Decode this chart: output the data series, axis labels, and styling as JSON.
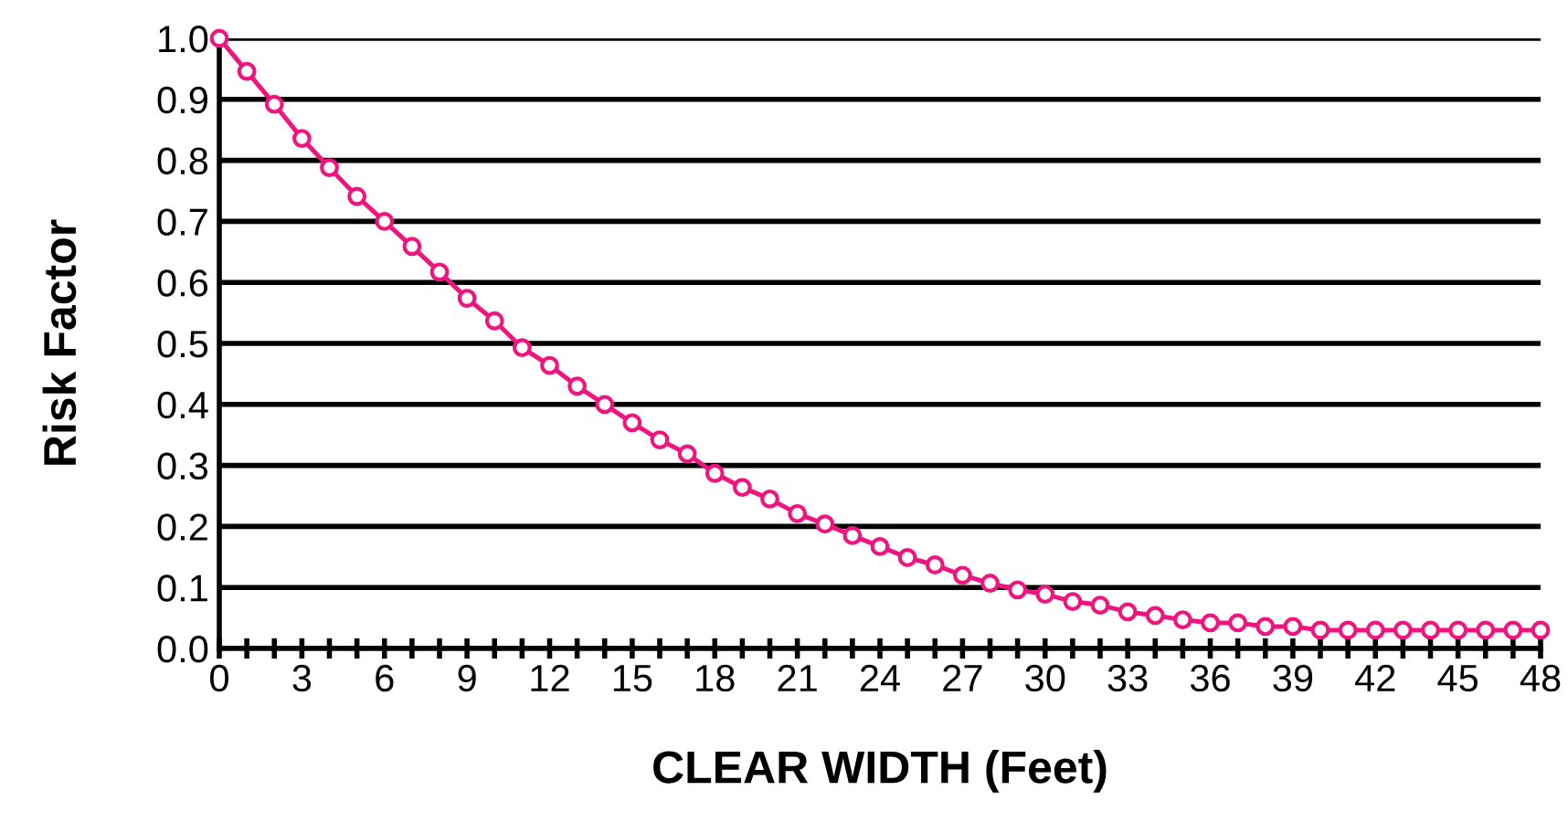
{
  "chart_data": {
    "type": "line",
    "xlabel": "CLEAR WIDTH (Feet)",
    "ylabel": "Risk Factor",
    "x": [
      0,
      1,
      2,
      3,
      4,
      5,
      6,
      7,
      8,
      9,
      10,
      11,
      12,
      13,
      14,
      15,
      16,
      17,
      18,
      19,
      20,
      21,
      22,
      23,
      24,
      25,
      26,
      27,
      28,
      29,
      30,
      31,
      32,
      33,
      34,
      35,
      36,
      37,
      38,
      39,
      40,
      41,
      42,
      43,
      44,
      45,
      46,
      47,
      48
    ],
    "series": [
      {
        "color": "#f0147f",
        "values": [
          1.0,
          0.946,
          0.892,
          0.836,
          0.788,
          0.741,
          0.7,
          0.659,
          0.617,
          0.574,
          0.537,
          0.493,
          0.464,
          0.43,
          0.4,
          0.37,
          0.342,
          0.319,
          0.287,
          0.264,
          0.245,
          0.221,
          0.204,
          0.185,
          0.167,
          0.149,
          0.137,
          0.12,
          0.107,
          0.096,
          0.089,
          0.077,
          0.071,
          0.06,
          0.054,
          0.047,
          0.042,
          0.042,
          0.036,
          0.036,
          0.03,
          0.03,
          0.03,
          0.03,
          0.03,
          0.03,
          0.03,
          0.03,
          0.03
        ]
      }
    ],
    "xlim": [
      0,
      48
    ],
    "ylim": [
      0,
      1.0
    ],
    "xticks": [
      0,
      {
        "value": 1,
        "label": null
      },
      {
        "value": 2,
        "label": null
      },
      3,
      {
        "value": 4,
        "label": null
      },
      {
        "value": 5,
        "label": null
      },
      6,
      {
        "value": 7,
        "label": null
      },
      {
        "value": 8,
        "label": null
      },
      9,
      {
        "value": 10,
        "label": null
      },
      {
        "value": 11,
        "label": null
      },
      12,
      {
        "value": 13,
        "label": null
      },
      {
        "value": 14,
        "label": null
      },
      15,
      {
        "value": 16,
        "label": null
      },
      {
        "value": 17,
        "label": null
      },
      18,
      {
        "value": 19,
        "label": null
      },
      {
        "value": 20,
        "label": null
      },
      21,
      {
        "value": 22,
        "label": null
      },
      {
        "value": 23,
        "label": null
      },
      24,
      {
        "value": 25,
        "label": null
      },
      {
        "value": 26,
        "label": null
      },
      27,
      {
        "value": 28,
        "label": null
      },
      {
        "value": 29,
        "label": null
      },
      30,
      {
        "value": 31,
        "label": null
      },
      {
        "value": 32,
        "label": null
      },
      33,
      {
        "value": 34,
        "label": null
      },
      {
        "value": 35,
        "label": null
      },
      36,
      {
        "value": 37,
        "label": null
      },
      {
        "value": 38,
        "label": null
      },
      39,
      {
        "value": 40,
        "label": null
      },
      {
        "value": 41,
        "label": null
      },
      42,
      {
        "value": 43,
        "label": null
      },
      {
        "value": 44,
        "label": null
      },
      45,
      {
        "value": 46,
        "label": null
      },
      {
        "value": 47,
        "label": null
      },
      48
    ],
    "yticks": [
      {
        "value": 0,
        "label": "0.0"
      },
      0.1,
      0.2,
      0.3,
      0.4,
      0.5,
      0.6,
      0.7,
      0.8,
      0.9,
      {
        "value": 1,
        "label": "1.0"
      }
    ],
    "grid": "y",
    "marker": "circle",
    "line_style": "solid"
  }
}
